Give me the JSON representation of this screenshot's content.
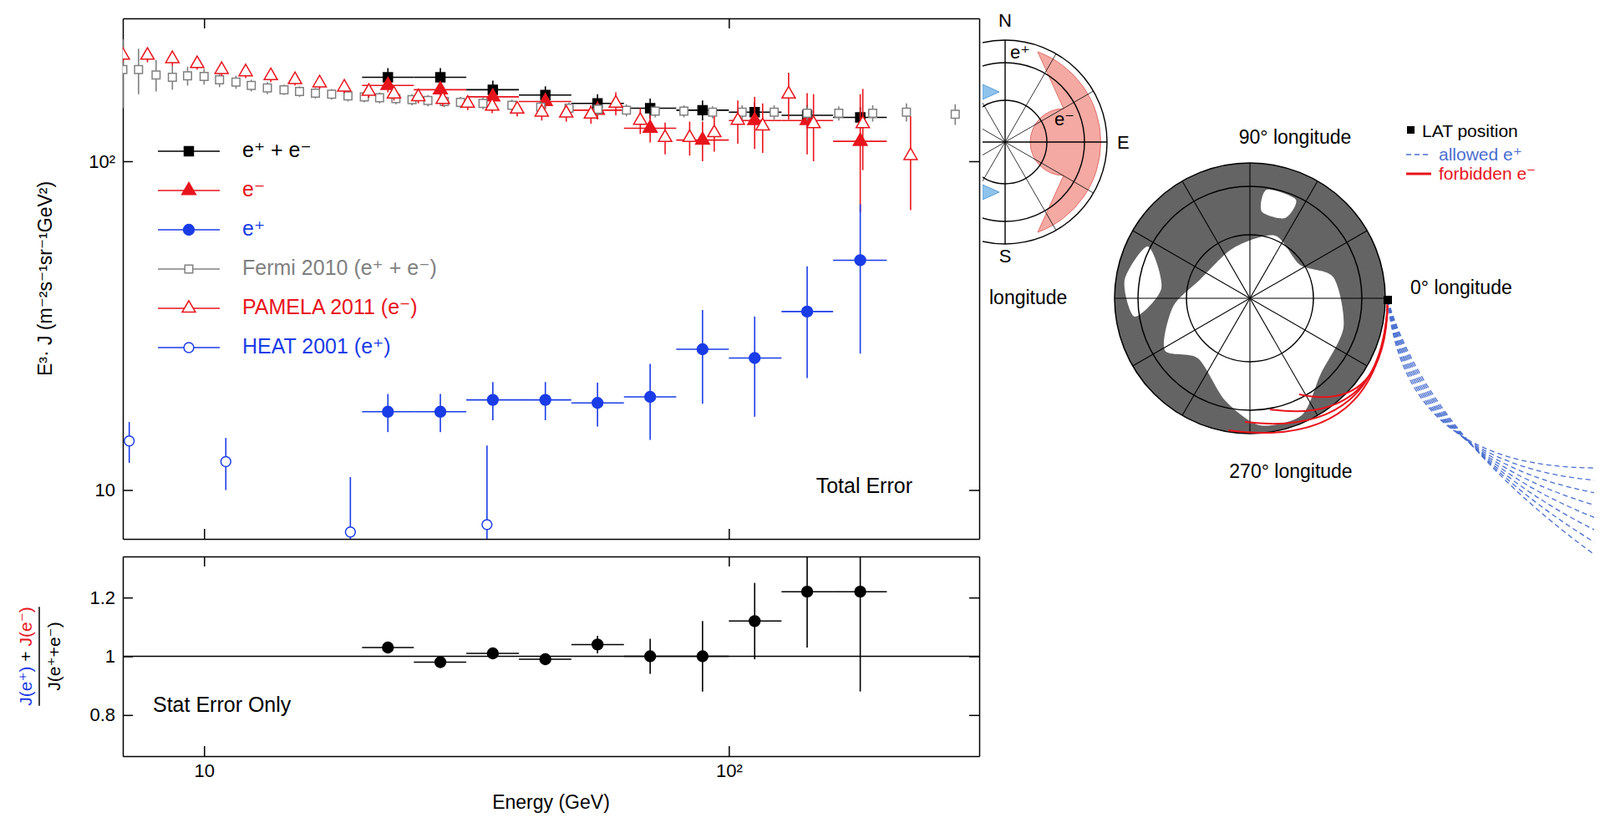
{
  "chart_data": [
    {
      "type": "scatter",
      "ylabel": "E³· J (m⁻²s⁻¹sr⁻¹GeV²)",
      "log": true,
      "xlim": [
        7,
        300
      ],
      "ylim": [
        7.1,
        272
      ],
      "xticks": [
        10,
        100
      ],
      "yticks": [
        10,
        {
          "value": 100,
          "label": "10²"
        }
      ],
      "tick_labels": "y",
      "legend": "upper left",
      "annotation": "Total Error",
      "series": [
        {
          "name": "e⁺ + e⁻",
          "color": "#000000",
          "marker": "square",
          "x": [
            22.4,
            28.2,
            35.5,
            44.7,
            56.2,
            70.8,
            89.1,
            112,
            141,
            178
          ],
          "bin_edges": [
            20,
            25.1,
            31.6,
            39.8,
            50.1,
            63.1,
            79.4,
            100,
            126,
            158,
            200
          ],
          "values": [
            180,
            180,
            165,
            159,
            150,
            145,
            143,
            141,
            138,
            136
          ],
          "errors": [
            12,
            12,
            11,
            10,
            10,
            10,
            10,
            10,
            10,
            10
          ]
        },
        {
          "name": "e⁻",
          "color": "#e8141c",
          "marker": "triangle",
          "x": [
            22.4,
            28.2,
            35.5,
            44.7,
            56.2,
            70.8,
            89.1,
            112,
            141,
            178
          ],
          "bin_edges": [
            20,
            25.1,
            31.6,
            39.8,
            50.1,
            63.1,
            79.4,
            100,
            126,
            158,
            200
          ],
          "values": [
            170,
            165,
            157,
            152,
            143,
            126,
            116,
            133,
            133,
            115
          ],
          "errors": [
            8,
            8,
            8,
            8,
            9,
            12,
            16,
            24,
            28,
            45
          ]
        },
        {
          "name": "e⁺",
          "color": "#1a3ce6",
          "marker": "circle",
          "x": [
            22.4,
            28.2,
            35.5,
            44.7,
            56.2,
            70.8,
            89.1,
            112,
            141,
            178
          ],
          "bin_edges": [
            20,
            25.1,
            31.6,
            39.8,
            50.1,
            63.1,
            79.4,
            100,
            126,
            158,
            200
          ],
          "values": [
            17.3,
            17.3,
            18.8,
            18.8,
            18.4,
            19.2,
            26.8,
            25.2,
            34.9,
            50
          ],
          "errors": [
            2.3,
            2.3,
            2.5,
            2.5,
            2.8,
            5,
            8.5,
            8.5,
            13,
            24
          ]
        },
        {
          "name": "Fermi 2010 (e⁺ + e⁻)",
          "color": "#808080",
          "marker": "open-square",
          "x": [
            7.0,
            7.5,
            8.1,
            8.7,
            9.3,
            10.0,
            10.7,
            11.5,
            12.3,
            13.2,
            14.2,
            15.2,
            16.3,
            17.5,
            18.8,
            20.2,
            21.6,
            23.2,
            24.9,
            26.7,
            28.7,
            30.8,
            34.0,
            38.6,
            43.8,
            49.6,
            56.3,
            63.8,
            72.4,
            82.1,
            93.1,
            106,
            122,
            141,
            162,
            188,
            218,
            270
          ],
          "values": [
            190,
            190,
            183,
            180,
            182,
            181,
            177,
            174,
            170,
            167,
            165,
            163,
            161,
            160,
            158,
            157,
            156,
            155,
            154,
            153,
            152,
            151,
            150,
            148,
            146,
            145,
            144,
            143,
            142,
            142,
            141,
            141,
            141,
            140,
            140,
            140,
            141,
            139
          ],
          "errors": [
            45,
            30,
            20,
            15,
            12,
            10,
            9,
            8,
            7,
            7,
            6,
            6,
            6,
            6,
            6,
            6,
            6,
            6,
            6,
            6,
            6,
            6,
            6,
            6,
            6,
            6,
            6,
            6,
            6,
            6,
            6,
            7,
            7,
            7,
            7,
            8,
            9,
            10
          ]
        },
        {
          "name": "PAMELA 2011 (e⁻)",
          "color": "#e8141c",
          "marker": "open-triangle",
          "x": [
            7.0,
            7.8,
            8.7,
            9.7,
            10.8,
            12.0,
            13.4,
            14.9,
            16.6,
            18.5,
            20.6,
            23.0,
            25.6,
            28.5,
            31.8,
            35.4,
            39.5,
            44.0,
            49.0,
            54.6,
            60.9,
            67.8,
            75.6,
            84.2,
            93.8,
            104,
            116,
            130,
            145,
            180,
            222
          ],
          "values": [
            210,
            210,
            205,
            198,
            190,
            187,
            182,
            177,
            173,
            168,
            163,
            160,
            157,
            154,
            150,
            147,
            144,
            141,
            140,
            139,
            150,
            133,
            118,
            118,
            122,
            133,
            128,
            160,
            130,
            130,
            104
          ],
          "errors": [
            10,
            10,
            10,
            8,
            8,
            8,
            8,
            7,
            7,
            7,
            7,
            7,
            7,
            7,
            7,
            7,
            7,
            8,
            8,
            9,
            12,
            12,
            13,
            14,
            15,
            20,
            22,
            26,
            30,
            36,
            33
          ]
        },
        {
          "name": "HEAT 2001 (e⁺)",
          "color": "#1a3ce6",
          "marker": "open-circle",
          "x": [
            7.2,
            11.0,
            19.0,
            34.6
          ],
          "values": [
            14.1,
            12.2,
            7.45,
            7.85
          ],
          "errors": [
            2.0,
            2.2,
            3.5,
            5.8
          ]
        }
      ]
    },
    {
      "type": "scatter",
      "xlabel": "Energy (GeV)",
      "ylabel": {
        "numerator": [
          "J(e⁺)",
          " + ",
          "J(e⁻)"
        ],
        "denominator": "J(e⁺+e⁻)"
      },
      "log": "x",
      "xlim": [
        7,
        300
      ],
      "ylim": [
        0.66,
        1.34
      ],
      "xticks": [
        10,
        {
          "value": 100,
          "label": "10²"
        }
      ],
      "yticks": [
        0.8,
        1,
        1.2
      ],
      "reference_line": 1,
      "annotation": "Stat Error Only",
      "series": [
        {
          "color": "#000000",
          "marker": "circle",
          "x": [
            22.4,
            28.2,
            35.5,
            44.7,
            56.2,
            70.8,
            89.1,
            112,
            141,
            178
          ],
          "bin_edges": [
            20,
            25.1,
            31.6,
            39.8,
            50.1,
            63.1,
            79.4,
            100,
            126,
            158,
            200
          ],
          "values": [
            1.03,
            0.98,
            1.01,
            0.99,
            1.04,
            1.0,
            1.0,
            1.12,
            1.22,
            1.22
          ],
          "errors": [
            0.01,
            0.015,
            0.01,
            0.02,
            0.03,
            0.06,
            0.12,
            0.13,
            0.19,
            0.34
          ]
        }
      ]
    }
  ],
  "diagram": {
    "inset": {
      "directions": [
        "N",
        "E",
        "S"
      ],
      "particles": [
        "e⁺",
        "e⁻"
      ]
    },
    "map": {
      "labels": [
        "90° longitude",
        "0° longitude",
        "270° longitude",
        "longitude"
      ]
    },
    "key": [
      "LAT position",
      "allowed e⁺",
      "forbidden e⁻"
    ]
  }
}
